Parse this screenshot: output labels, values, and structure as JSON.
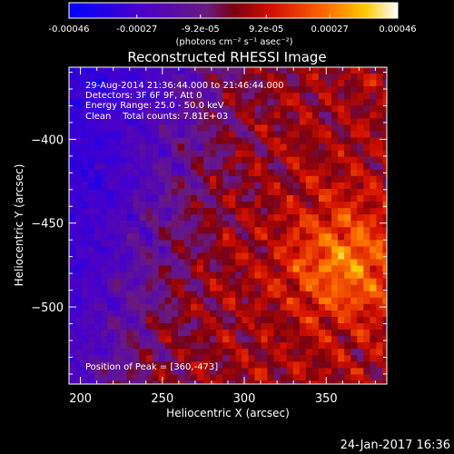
{
  "chart_data": {
    "type": "heatmap",
    "title": "Reconstructed RHESSI Image",
    "xlabel": "Heliocentric X (arcsec)",
    "ylabel": "Heliocentric Y (arcsec)",
    "xlim": [
      193,
      387
    ],
    "ylim": [
      -546,
      -357
    ],
    "x_ticks": [
      200,
      250,
      300,
      350
    ],
    "y_ticks": [
      -400,
      -450,
      -500
    ],
    "colorbar": {
      "range": [
        -0.00046,
        0.00046
      ],
      "tick_values": [
        -0.00046,
        -0.00027,
        -9.2e-05,
        9.2e-05,
        0.00027,
        0.00046
      ],
      "tick_labels": [
        "-0.00046",
        "-0.00027",
        "-9.2e-05",
        "9.2e-05",
        "0.00027",
        "0.00046"
      ],
      "unit_label": "(photons cm⁻² s⁻¹ asec⁻²)"
    },
    "annotations": [
      "29-Aug-2014 21:36:44.000 to 21:46:44.000",
      "Detectors: 3F 6F 9F, Att 0",
      "Energy Range: 25.0 - 50.0 keV",
      "Clean    Total counts: 7.81E+03"
    ],
    "peak_text": "Position of Peak = [360,-473]",
    "peak": [
      360,
      -473
    ],
    "grid": false
  },
  "footer": {
    "date": "24-Jan-2017 16:36"
  }
}
